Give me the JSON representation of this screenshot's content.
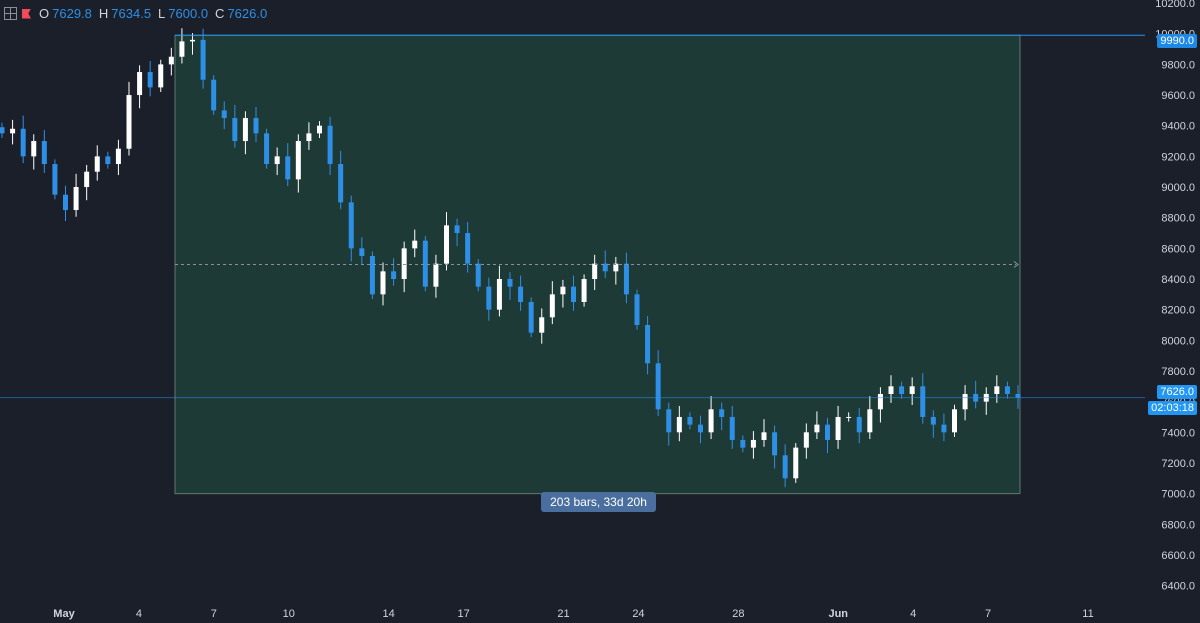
{
  "ohlc": {
    "o_label": "O",
    "o": "7629.8",
    "h_label": "H",
    "h": "7634.5",
    "l_label": "L",
    "l": "7600.0",
    "c_label": "C",
    "c": "7626.0"
  },
  "range_label": "203 bars, 33d 20h",
  "price_tags": {
    "top": "9990.0",
    "last": "7626.0",
    "timer": "02:03:18"
  },
  "colors": {
    "background": "#1b1f29",
    "up": "#ffffff",
    "down": "#2e8fe6",
    "range_fill": "#1e3a36",
    "accent": "#2196f3",
    "axis_text": "#d1d4dc"
  },
  "chart_data": {
    "type": "candlestick",
    "title": "",
    "y_axis": {
      "range": [
        6280,
        10220
      ],
      "ticks": [
        6400,
        6600,
        6800,
        7000,
        7200,
        7400,
        7600,
        7800,
        8000,
        8200,
        8400,
        8600,
        8800,
        9000,
        9200,
        9400,
        9600,
        9800,
        10000,
        10200
      ],
      "tick_labels": [
        "6400.0",
        "6600.0",
        "6800.0",
        "7000.0",
        "7200.0",
        "7400.0",
        "7600.0",
        "7800.0",
        "8000.0",
        "8200.0",
        "8400.0",
        "8600.0",
        "8800.0",
        "9000.0",
        "9200.0",
        "9400.0",
        "9600.0",
        "9800.0",
        "10000.0",
        "10200.0"
      ]
    },
    "x_axis": {
      "tick_labels": [
        "May",
        "4",
        "7",
        "10",
        "14",
        "17",
        "21",
        "24",
        "28",
        "Jun",
        "4",
        "7",
        "11"
      ],
      "tick_days": [
        1,
        4,
        7,
        10,
        14,
        17,
        21,
        24,
        28,
        32,
        35,
        38,
        42
      ]
    },
    "date_range": {
      "start_price": 9990,
      "end_price": 7000,
      "bars": 203,
      "duration": "33d 20h",
      "mid_price": 8495
    },
    "price_lines": {
      "range_top": 9990,
      "last": 7626
    },
    "series_closes": [
      9350,
      9380,
      9200,
      9300,
      9150,
      8950,
      8850,
      9000,
      9100,
      9200,
      9150,
      9250,
      9600,
      9750,
      9650,
      9800,
      9850,
      9950,
      9960,
      9700,
      9500,
      9450,
      9300,
      9450,
      9350,
      9150,
      9200,
      9050,
      9300,
      9350,
      9400,
      9150,
      8900,
      8600,
      8550,
      8300,
      8450,
      8400,
      8600,
      8650,
      8350,
      8500,
      8750,
      8700,
      8500,
      8350,
      8200,
      8400,
      8350,
      8250,
      8050,
      8150,
      8300,
      8350,
      8250,
      8400,
      8500,
      8450,
      8500,
      8300,
      8100,
      7850,
      7550,
      7400,
      7500,
      7450,
      7400,
      7550,
      7500,
      7350,
      7300,
      7350,
      7400,
      7250,
      7100,
      7300,
      7400,
      7450,
      7350,
      7500,
      7500,
      7400,
      7550,
      7650,
      7700,
      7650,
      7700,
      7500,
      7450,
      7400,
      7550,
      7650,
      7600,
      7650,
      7700,
      7650,
      7626
    ]
  }
}
